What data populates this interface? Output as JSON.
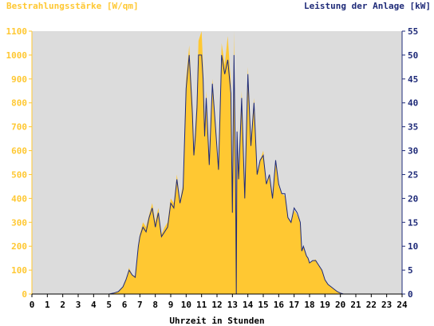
{
  "chart_data": {
    "type": "area",
    "title_left": "Bestrahlungsstärke [W/qm]",
    "title_right": "Leistung der Anlage [kW]",
    "xlabel": "Uhrzeit in Stunden",
    "x_ticks": [
      "0",
      "1",
      "2",
      "3",
      "4",
      "5",
      "6",
      "7",
      "8",
      "9",
      "10",
      "11",
      "12",
      "13",
      "14",
      "15",
      "16",
      "17",
      "18",
      "19",
      "20",
      "21",
      "22",
      "23",
      "24"
    ],
    "y_left_ticks": [
      "0",
      "100",
      "200",
      "300",
      "400",
      "500",
      "600",
      "700",
      "800",
      "900",
      "1000",
      "1100"
    ],
    "y_right_ticks": [
      "0",
      "5",
      "10",
      "15",
      "20",
      "25",
      "30",
      "35",
      "40",
      "45",
      "50",
      "55"
    ],
    "xlim": [
      0,
      24
    ],
    "ylim_left": [
      0,
      1100
    ],
    "ylim_right": [
      0,
      55
    ],
    "grid": false,
    "colors": {
      "plot_background": "#dcdcdc",
      "irradiance_fill": "#ffc832",
      "power_line": "#1e2a78",
      "left_axis": "#ffc832",
      "right_axis": "#1e2a78"
    },
    "series": [
      {
        "name": "Bestrahlungsstärke [W/qm]",
        "axis": "left",
        "x": [
          0,
          5.0,
          5.3,
          5.6,
          5.9,
          6.1,
          6.3,
          6.5,
          6.7,
          6.9,
          7.0,
          7.2,
          7.4,
          7.6,
          7.8,
          8.0,
          8.2,
          8.4,
          8.6,
          8.8,
          9.0,
          9.2,
          9.4,
          9.6,
          9.8,
          10.0,
          10.2,
          10.4,
          10.5,
          10.6,
          10.7,
          10.8,
          11.0,
          11.1,
          11.2,
          11.3,
          11.5,
          11.7,
          11.9,
          12.1,
          12.3,
          12.5,
          12.7,
          12.9,
          13.0,
          13.1,
          13.2,
          13.25,
          13.3,
          13.4,
          13.6,
          13.8,
          14.0,
          14.2,
          14.4,
          14.6,
          14.8,
          15.0,
          15.2,
          15.4,
          15.6,
          15.8,
          16.0,
          16.2,
          16.4,
          16.6,
          16.8,
          17.0,
          17.2,
          17.4,
          17.5,
          17.6,
          17.7,
          17.8,
          17.9,
          18.0,
          18.2,
          18.4,
          18.6,
          18.8,
          19.0,
          19.2,
          19.4,
          19.6,
          19.8,
          20.0,
          20.2,
          20.4,
          24
        ],
        "values": [
          0,
          0,
          5,
          10,
          30,
          60,
          110,
          80,
          75,
          200,
          250,
          300,
          280,
          330,
          380,
          300,
          360,
          250,
          280,
          300,
          400,
          380,
          500,
          390,
          460,
          900,
          1040,
          800,
          600,
          700,
          820,
          1060,
          1100,
          950,
          680,
          850,
          540,
          900,
          720,
          520,
          1050,
          960,
          1080,
          880,
          350,
          1100,
          550,
          0,
          700,
          480,
          850,
          400,
          950,
          650,
          820,
          500,
          560,
          600,
          460,
          500,
          400,
          560,
          450,
          420,
          410,
          320,
          300,
          350,
          330,
          300,
          180,
          200,
          180,
          160,
          150,
          130,
          140,
          145,
          120,
          100,
          60,
          40,
          30,
          20,
          10,
          5,
          0,
          0,
          0
        ],
        "fill": "#ffc832"
      },
      {
        "name": "Leistung der Anlage [kW]",
        "axis": "right",
        "x": [
          0,
          5.0,
          5.3,
          5.6,
          5.9,
          6.1,
          6.3,
          6.5,
          6.7,
          6.9,
          7.0,
          7.2,
          7.4,
          7.6,
          7.8,
          8.0,
          8.2,
          8.4,
          8.6,
          8.8,
          9.0,
          9.2,
          9.4,
          9.6,
          9.8,
          10.0,
          10.2,
          10.4,
          10.5,
          10.6,
          10.7,
          10.8,
          11.0,
          11.1,
          11.2,
          11.3,
          11.5,
          11.7,
          11.9,
          12.1,
          12.3,
          12.5,
          12.7,
          12.9,
          13.0,
          13.1,
          13.2,
          13.25,
          13.3,
          13.4,
          13.6,
          13.8,
          14.0,
          14.2,
          14.4,
          14.6,
          14.8,
          15.0,
          15.2,
          15.4,
          15.6,
          15.8,
          16.0,
          16.2,
          16.4,
          16.6,
          16.8,
          17.0,
          17.2,
          17.4,
          17.5,
          17.6,
          17.7,
          17.8,
          17.9,
          18.0,
          18.2,
          18.4,
          18.6,
          18.8,
          19.0,
          19.2,
          19.4,
          19.6,
          19.8,
          20.0,
          20.2,
          20.4,
          24
        ],
        "values": [
          0,
          0,
          0.2,
          0.5,
          1.5,
          3,
          5,
          4,
          3.5,
          10,
          12,
          14,
          13,
          16,
          18,
          14,
          17,
          12,
          13,
          14,
          19,
          18,
          24,
          19,
          22,
          43,
          50,
          38,
          29,
          33,
          39,
          50,
          50,
          45,
          33,
          41,
          27,
          44,
          35,
          26,
          50,
          46,
          49,
          42,
          17,
          50,
          26,
          0,
          34,
          24,
          41,
          20,
          46,
          31,
          40,
          25,
          28,
          29,
          23,
          25,
          20,
          28,
          23,
          21,
          21,
          16,
          15,
          18,
          17,
          15,
          9,
          10,
          9,
          8,
          7.5,
          6.5,
          7,
          7,
          6,
          5,
          3,
          2,
          1.5,
          1,
          0.5,
          0.2,
          0,
          0,
          0
        ],
        "stroke": "#1e2a78"
      }
    ]
  }
}
